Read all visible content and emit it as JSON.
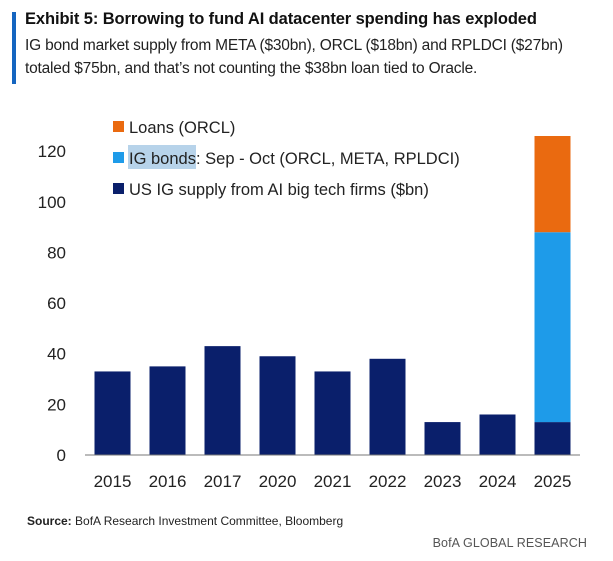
{
  "header": {
    "title": "Exhibit 5: Borrowing to fund AI datacenter spending has exploded",
    "subtitle": "IG bond market supply from META ($30bn), ORCL ($18bn) and RPLDCI ($27bn) totaled $75bn, and that’s not counting the $38bn loan tied to Oracle."
  },
  "chart_data": {
    "type": "bar",
    "stacked": true,
    "categories": [
      "2015",
      "2016",
      "2017",
      "2020",
      "2021",
      "2022",
      "2023",
      "2024",
      "2025"
    ],
    "series": [
      {
        "name": "US IG supply from AI big tech firms ($bn)",
        "color": "#0a1f6b",
        "values": [
          33,
          35,
          43,
          39,
          33,
          38,
          13,
          16,
          13
        ]
      },
      {
        "name_highlight": "IG bonds",
        "name_rest": ": Sep - Oct (ORCL, META, RPLDCI)",
        "color": "#1e9be9",
        "values": [
          0,
          0,
          0,
          0,
          0,
          0,
          0,
          0,
          75
        ]
      },
      {
        "name": "Loans (ORCL)",
        "color": "#ea6a10",
        "values": [
          0,
          0,
          0,
          0,
          0,
          0,
          0,
          0,
          38
        ]
      }
    ],
    "ylim": [
      0,
      126
    ],
    "yticks": [
      0,
      20,
      40,
      60,
      80,
      100,
      120
    ],
    "legend_position": "top-left"
  },
  "source": {
    "label": "Source:",
    "text": "BofA Research Investment Committee, Bloomberg"
  },
  "footer": "BofA GLOBAL RESEARCH"
}
